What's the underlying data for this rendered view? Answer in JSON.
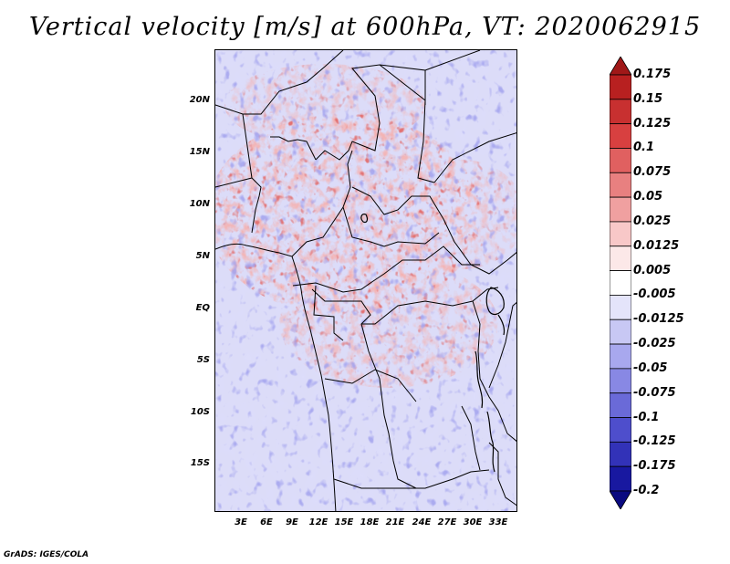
{
  "title": "Vertical velocity [m/s] at 600hPa, VT: 2020062915",
  "credit": "GrADS: IGES/COLA",
  "map": {
    "lat_labels": [
      "20N",
      "15N",
      "10N",
      "5N",
      "EQ",
      "5S",
      "10S",
      "15S"
    ],
    "lon_labels": [
      "3E",
      "6E",
      "9E",
      "12E",
      "15E",
      "18E",
      "21E",
      "24E",
      "27E",
      "30E",
      "33E"
    ],
    "lat_range": [
      -20,
      25
    ],
    "lon_range": [
      0,
      35
    ]
  },
  "colorbar": {
    "levels": [
      "0.175",
      "0.15",
      "0.125",
      "0.1",
      "0.075",
      "0.05",
      "0.025",
      "0.0125",
      "0.005",
      "-0.005",
      "-0.0125",
      "-0.025",
      "-0.05",
      "-0.075",
      "-0.1",
      "-0.125",
      "-0.175",
      "-0.2"
    ],
    "colors": [
      "#a01818",
      "#b82020",
      "#c83030",
      "#d84040",
      "#e06060",
      "#e88080",
      "#f0a0a0",
      "#f8c8c8",
      "#fce8e8",
      "#ffffff",
      "#e4e4fa",
      "#c8c8f4",
      "#a8a8ee",
      "#8888e4",
      "#6a6ad8",
      "#4e4ecc",
      "#3232b8",
      "#1818a0",
      "#0a0a80"
    ]
  }
}
